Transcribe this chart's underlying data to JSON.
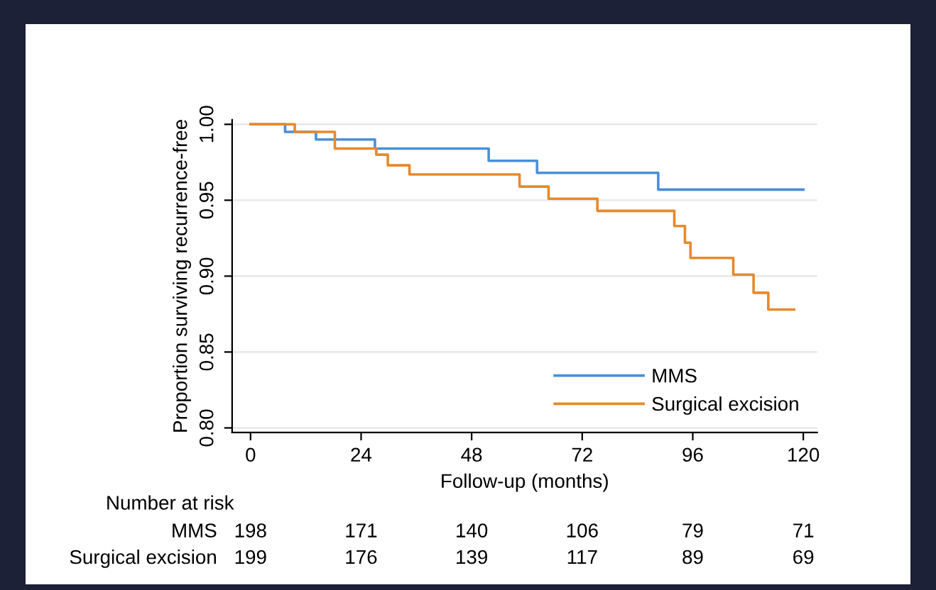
{
  "chart_data": {
    "type": "step",
    "xlabel": "Follow-up (months)",
    "ylabel": "Proportion surviving recurrence-free",
    "series": [
      {
        "name": "MMS",
        "color": "#4a8fd9",
        "x": [
          0,
          7.5,
          14.2,
          27.0,
          51.7,
          62.2,
          88.5,
          120
        ],
        "values": [
          1.0,
          0.995,
          0.99,
          0.984,
          0.976,
          0.968,
          0.957,
          0.957
        ]
      },
      {
        "name": "Surgical excision",
        "color": "#e8892b",
        "x": [
          0,
          9.6,
          18.3,
          27.3,
          29.8,
          34.5,
          58.4,
          64.7,
          75.3,
          92.0,
          94.3,
          95.5,
          104.8,
          109.2,
          112.4,
          118
        ],
        "values": [
          1.0,
          0.995,
          0.984,
          0.98,
          0.973,
          0.967,
          0.959,
          0.951,
          0.943,
          0.933,
          0.922,
          0.912,
          0.901,
          0.889,
          0.878,
          0.878
        ]
      }
    ],
    "xlim": [
      -4,
      123
    ],
    "xticks": [
      0,
      24,
      48,
      72,
      96,
      120
    ],
    "ylim": [
      0.797,
      1.003
    ],
    "yticks": [
      {
        "value": 0.8,
        "label": "0.80"
      },
      {
        "value": 0.85,
        "label": "0.85"
      },
      {
        "value": 0.9,
        "label": "0.90"
      },
      {
        "value": 0.95,
        "label": "0.95"
      },
      {
        "value": 1.0,
        "label": "1.00"
      }
    ],
    "grid": "y",
    "legend": "bottom right",
    "line_style": "solid",
    "marker": "none",
    "annotations": [
      "Number at risk",
      "MMS",
      "198",
      "171",
      "140",
      "106",
      "79",
      "71",
      "Surgical excision",
      "199",
      "176",
      "139",
      "117",
      "89",
      "69"
    ]
  }
}
